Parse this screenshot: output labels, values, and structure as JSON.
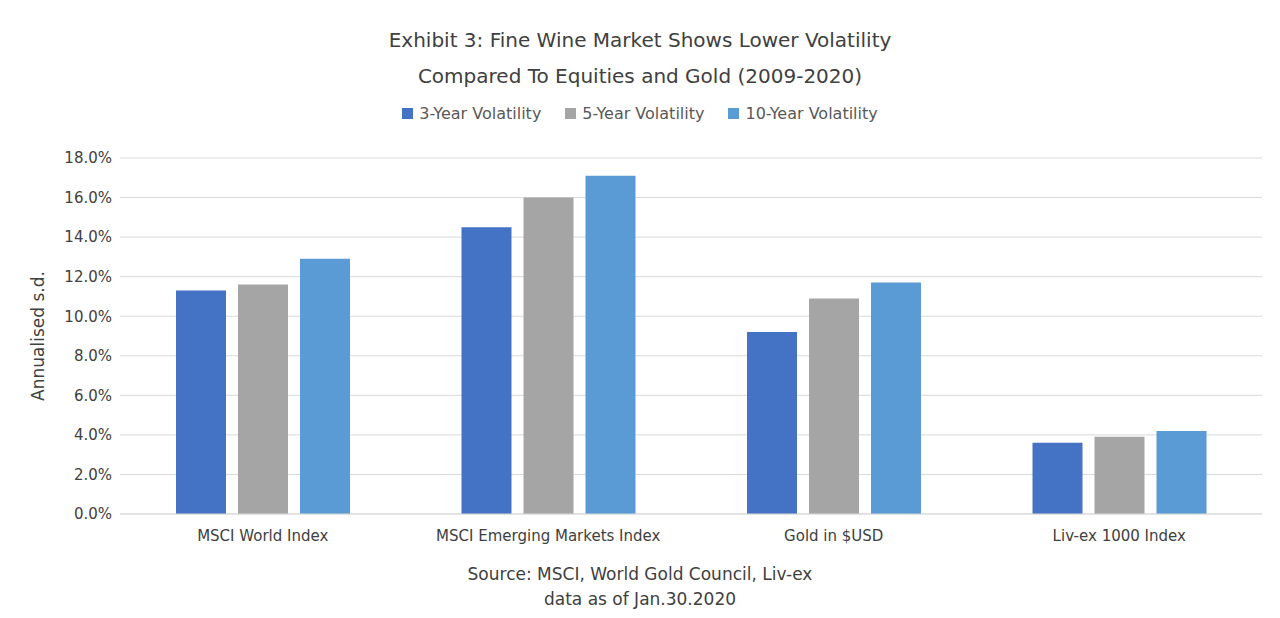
{
  "chart_data": {
    "type": "bar",
    "title": "Exhibit 3: Fine Wine Market Shows Lower Volatility\nCompared To Equities and Gold (2009-2020)",
    "y_label": "Annualised s.d.",
    "annotations": [
      "Source: MSCI, World Gold Council, Liv-ex",
      "data as of Jan.30.2020"
    ],
    "categories": [
      "MSCI World Index",
      "MSCI Emerging Markets Index",
      "Gold in $USD",
      "Liv-ex 1000 Index"
    ],
    "series": [
      {
        "name": "3-Year Volatility",
        "color": "#4472c4",
        "values": [
          11.3,
          14.5,
          9.2,
          3.6
        ]
      },
      {
        "name": "5-Year Volatility",
        "color": "#a5a5a5",
        "values": [
          11.6,
          16.0,
          10.9,
          3.9
        ]
      },
      {
        "name": "10-Year Volatility",
        "color": "#5b9bd5",
        "values": [
          12.9,
          17.1,
          11.7,
          4.2
        ]
      }
    ],
    "ylim": [
      0,
      18
    ],
    "yticks": [
      {
        "value": 0,
        "label": "0.0%"
      },
      {
        "value": 2,
        "label": "2.0%"
      },
      {
        "value": 4,
        "label": "4.0%"
      },
      {
        "value": 6,
        "label": "6.0%"
      },
      {
        "value": 8,
        "label": "8.0%"
      },
      {
        "value": 10,
        "label": "10.0%"
      },
      {
        "value": 12,
        "label": "12.0%"
      },
      {
        "value": 14,
        "label": "14.0%"
      },
      {
        "value": 16,
        "label": "16.0%"
      },
      {
        "value": 18,
        "label": "18.0%"
      }
    ],
    "grid": true,
    "legend": "top"
  }
}
